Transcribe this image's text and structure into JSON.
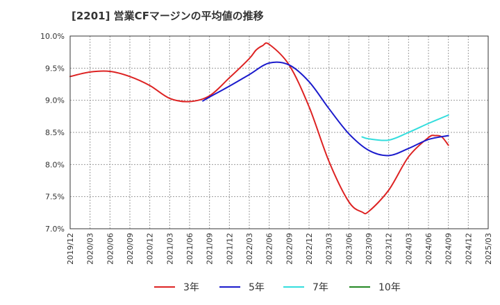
{
  "chart_data": {
    "type": "line",
    "title": "[2201]  営業CFマージンの平均値の推移",
    "xlabel": "",
    "ylabel": "",
    "ylim": [
      7.0,
      10.0
    ],
    "y_ticks": [
      "10.0%",
      "9.5%",
      "9.0%",
      "8.5%",
      "8.0%",
      "7.5%",
      "7.0%"
    ],
    "x_ticks": [
      "2019/12",
      "2020/03",
      "2020/06",
      "2020/09",
      "2020/12",
      "2021/03",
      "2021/06",
      "2021/09",
      "2021/12",
      "2022/03",
      "2022/06",
      "2022/09",
      "2022/12",
      "2023/03",
      "2023/06",
      "2023/09",
      "2023/12",
      "2024/03",
      "2024/06",
      "2024/09",
      "2024/12",
      "2025/03"
    ],
    "grid": true,
    "legend_position": "bottom",
    "series": [
      {
        "name": "3年",
        "color": "#dd2222",
        "x": [
          "2019/12",
          "2020/03",
          "2020/06",
          "2020/09",
          "2020/12",
          "2021/03",
          "2021/06",
          "2021/09",
          "2021/12",
          "2022/03",
          "2022/04",
          "2022/05",
          "2022/06",
          "2022/09",
          "2022/12",
          "2023/03",
          "2023/06",
          "2023/08",
          "2023/09",
          "2023/12",
          "2024/03",
          "2024/06",
          "2024/07",
          "2024/08",
          "2024/09"
        ],
        "y": [
          9.37,
          9.44,
          9.45,
          9.37,
          9.23,
          9.03,
          8.98,
          9.07,
          9.35,
          9.65,
          9.78,
          9.85,
          9.87,
          9.55,
          8.9,
          8.05,
          7.42,
          7.26,
          7.27,
          7.6,
          8.12,
          8.42,
          8.45,
          8.43,
          8.3
        ]
      },
      {
        "name": "5年",
        "color": "#1a1acc",
        "x": [
          "2021/08",
          "2021/09",
          "2021/12",
          "2022/03",
          "2022/06",
          "2022/09",
          "2022/12",
          "2023/03",
          "2023/06",
          "2023/09",
          "2023/12",
          "2024/03",
          "2024/06",
          "2024/09"
        ],
        "y": [
          8.99,
          9.05,
          9.22,
          9.4,
          9.58,
          9.55,
          9.29,
          8.87,
          8.48,
          8.22,
          8.14,
          8.25,
          8.39,
          8.45
        ]
      },
      {
        "name": "7年",
        "color": "#33dddd",
        "x": [
          "2023/08",
          "2023/09",
          "2023/12",
          "2024/03",
          "2024/06",
          "2024/09"
        ],
        "y": [
          8.43,
          8.4,
          8.38,
          8.5,
          8.64,
          8.77
        ]
      },
      {
        "name": "10年",
        "color": "#228822",
        "x": [],
        "y": []
      }
    ]
  }
}
